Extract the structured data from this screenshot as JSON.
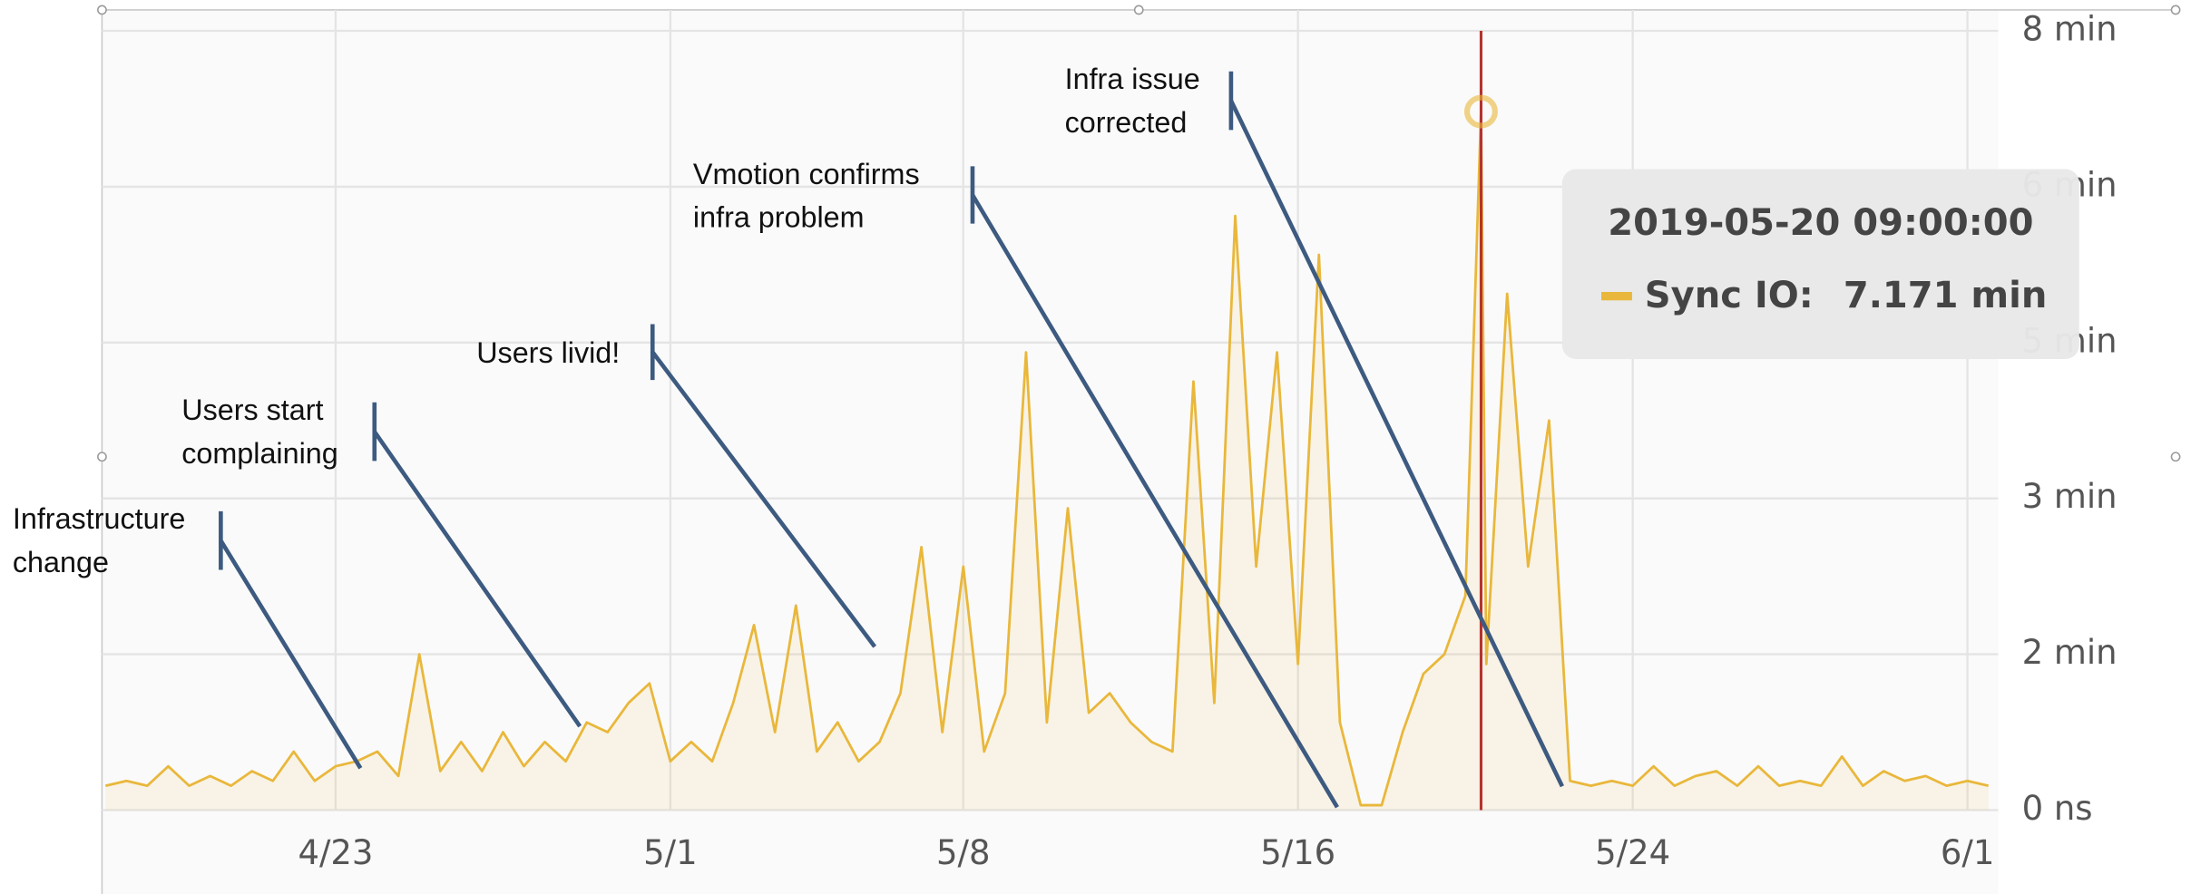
{
  "chart_data": {
    "type": "line",
    "x": [
      "2019-04-17 12:00",
      "2019-04-18 00:00",
      "2019-04-18 12:00",
      "2019-04-19 00:00",
      "2019-04-19 12:00",
      "2019-04-20 00:00",
      "2019-04-20 12:00",
      "2019-04-21 00:00",
      "2019-04-21 12:00",
      "2019-04-22 00:00",
      "2019-04-22 12:00",
      "2019-04-23 00:00",
      "2019-04-23 12:00",
      "2019-04-24 00:00",
      "2019-04-24 12:00",
      "2019-04-25 00:00",
      "2019-04-25 12:00",
      "2019-04-26 00:00",
      "2019-04-26 12:00",
      "2019-04-27 00:00",
      "2019-04-27 12:00",
      "2019-04-28 00:00",
      "2019-04-28 12:00",
      "2019-04-29 00:00",
      "2019-04-29 12:00",
      "2019-04-30 00:00",
      "2019-04-30 12:00",
      "2019-05-01 00:00",
      "2019-05-01 12:00",
      "2019-05-02 00:00",
      "2019-05-02 12:00",
      "2019-05-03 00:00",
      "2019-05-03 12:00",
      "2019-05-04 00:00",
      "2019-05-04 12:00",
      "2019-05-05 00:00",
      "2019-05-05 12:00",
      "2019-05-06 00:00",
      "2019-05-06 12:00",
      "2019-05-07 00:00",
      "2019-05-07 12:00",
      "2019-05-08 00:00",
      "2019-05-08 12:00",
      "2019-05-09 00:00",
      "2019-05-09 12:00",
      "2019-05-10 00:00",
      "2019-05-10 12:00",
      "2019-05-11 00:00",
      "2019-05-11 12:00",
      "2019-05-12 00:00",
      "2019-05-12 12:00",
      "2019-05-13 00:00",
      "2019-05-13 12:00",
      "2019-05-14 00:00",
      "2019-05-14 12:00",
      "2019-05-15 00:00",
      "2019-05-15 12:00",
      "2019-05-16 00:00",
      "2019-05-16 12:00",
      "2019-05-17 00:00",
      "2019-05-17 12:00",
      "2019-05-18 00:00",
      "2019-05-18 12:00",
      "2019-05-19 00:00",
      "2019-05-19 12:00",
      "2019-05-20 00:00",
      "2019-05-20 09:00",
      "2019-05-20 12:00",
      "2019-05-21 00:00",
      "2019-05-21 12:00",
      "2019-05-22 00:00",
      "2019-05-22 12:00",
      "2019-05-23 00:00",
      "2019-05-23 12:00",
      "2019-05-24 00:00",
      "2019-05-24 12:00",
      "2019-05-25 00:00",
      "2019-05-25 12:00",
      "2019-05-26 00:00",
      "2019-05-26 12:00",
      "2019-05-27 00:00",
      "2019-05-27 12:00",
      "2019-05-28 00:00",
      "2019-05-28 12:00",
      "2019-05-29 00:00",
      "2019-05-29 12:00",
      "2019-05-30 00:00",
      "2019-05-30 12:00",
      "2019-05-31 00:00",
      "2019-05-31 12:00",
      "2019-06-01 00:00",
      "2019-06-01 12:00"
    ],
    "series": [
      {
        "name": "Sync IO:",
        "color": "#e9b73b",
        "values": [
          0.25,
          0.3,
          0.25,
          0.45,
          0.25,
          0.35,
          0.25,
          0.4,
          0.3,
          0.6,
          0.3,
          0.45,
          0.5,
          0.6,
          0.35,
          1.6,
          0.4,
          0.7,
          0.4,
          0.8,
          0.45,
          0.7,
          0.5,
          0.9,
          0.8,
          1.1,
          1.3,
          0.5,
          0.7,
          0.5,
          1.1,
          1.9,
          0.8,
          2.1,
          0.6,
          0.9,
          0.5,
          0.7,
          1.2,
          2.7,
          0.8,
          2.5,
          0.6,
          1.2,
          4.7,
          0.9,
          3.1,
          1.0,
          1.2,
          0.9,
          0.7,
          0.6,
          4.4,
          1.1,
          6.1,
          2.5,
          4.7,
          1.5,
          5.7,
          0.9,
          0.05,
          0.05,
          0.8,
          1.4,
          1.6,
          2.2,
          7.171,
          1.5,
          5.3,
          2.5,
          4.0,
          0.3,
          0.25,
          0.3,
          0.25,
          0.45,
          0.25,
          0.35,
          0.4,
          0.25,
          0.45,
          0.25,
          0.3,
          0.25,
          0.55,
          0.25,
          0.4,
          0.3,
          0.35,
          0.25,
          0.3,
          0.25
        ]
      }
    ],
    "xlim": [
      "2019-04-17 10:00",
      "2019-06-01 12:00"
    ],
    "xticks": [
      {
        "value": "2019-04-23",
        "label": "4/23"
      },
      {
        "value": "2019-05-01",
        "label": "5/1"
      },
      {
        "value": "2019-05-08",
        "label": "5/8"
      },
      {
        "value": "2019-05-16",
        "label": "5/16"
      },
      {
        "value": "2019-05-24",
        "label": "5/24"
      },
      {
        "value": "2019-06-01",
        "label": "6/1"
      }
    ],
    "ylim": [
      0,
      8
    ],
    "yticks": [
      {
        "value": 0,
        "label": "0 ns"
      },
      {
        "value": 1.6,
        "label": "2 min"
      },
      {
        "value": 3.2,
        "label": "3 min"
      },
      {
        "value": 4.8,
        "label": "5 min"
      },
      {
        "value": 6.4,
        "label": "6 min"
      },
      {
        "value": 8,
        "label": "8 min"
      }
    ],
    "grid": true,
    "annotations": [
      {
        "text": [
          "Infrastructure",
          "change"
        ]
      },
      {
        "text": [
          "Users start",
          "complaining"
        ]
      },
      {
        "text": [
          "Users livid!"
        ]
      },
      {
        "text": [
          "Vmotion confirms",
          "infra problem"
        ]
      },
      {
        "text": [
          "Infra issue",
          "corrected"
        ]
      }
    ],
    "tooltip": {
      "x": "2019-05-20 09:00:00",
      "value_label": "7.171 min"
    }
  }
}
